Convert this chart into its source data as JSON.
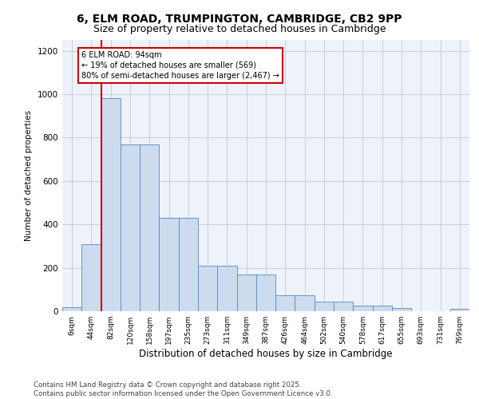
{
  "title_line1": "6, ELM ROAD, TRUMPINGTON, CAMBRIDGE, CB2 9PP",
  "title_line2": "Size of property relative to detached houses in Cambridge",
  "xlabel": "Distribution of detached houses by size in Cambridge",
  "ylabel": "Number of detached properties",
  "categories": [
    "6sqm",
    "44sqm",
    "82sqm",
    "120sqm",
    "158sqm",
    "197sqm",
    "235sqm",
    "273sqm",
    "311sqm",
    "349sqm",
    "387sqm",
    "426sqm",
    "464sqm",
    "502sqm",
    "540sqm",
    "578sqm",
    "617sqm",
    "655sqm",
    "693sqm",
    "731sqm",
    "769sqm"
  ],
  "bar_values": [
    20,
    310,
    980,
    770,
    770,
    430,
    430,
    210,
    210,
    170,
    170,
    75,
    75,
    45,
    45,
    25,
    25,
    15,
    0,
    0,
    10
  ],
  "bar_color": "#ccdcee",
  "bar_edge_color": "#5588bb",
  "vline_x_idx": 2,
  "vline_color": "#cc0000",
  "annotation_text": "6 ELM ROAD: 94sqm\n← 19% of detached houses are smaller (569)\n80% of semi-detached houses are larger (2,467) →",
  "annotation_box_color": "#cc0000",
  "ylim": [
    0,
    1250
  ],
  "yticks": [
    0,
    200,
    400,
    600,
    800,
    1000,
    1200
  ],
  "grid_color": "#c8ccd8",
  "background_color": "#eef2fa",
  "footer_line1": "Contains HM Land Registry data © Crown copyright and database right 2025.",
  "footer_line2": "Contains public sector information licensed under the Open Government Licence v3.0.",
  "title_fontsize": 10,
  "subtitle_fontsize": 9
}
